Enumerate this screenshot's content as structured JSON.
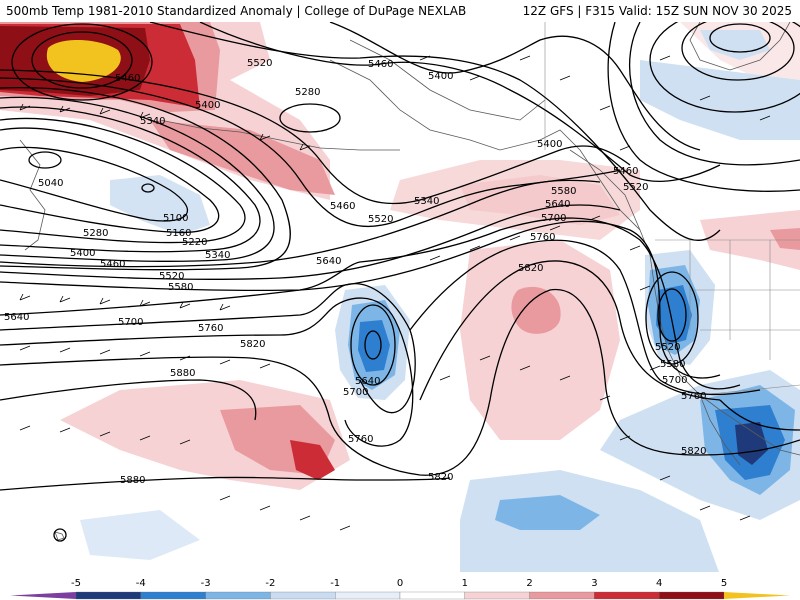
{
  "header": {
    "title_left": "500mb Temp 1981-2010 Standardized Anomaly | College of DuPage NEXLAB",
    "title_right": "12Z GFS | F315 Valid: 15Z SUN NOV 30 2025"
  },
  "colorbar": {
    "ticks": [
      "-5",
      "-4",
      "-3",
      "-2",
      "-1",
      "0",
      "1",
      "2",
      "3",
      "4",
      "5"
    ],
    "colors": [
      "#7b3fa0",
      "#1f3a7a",
      "#2f7fd0",
      "#7db6e6",
      "#c9dcf2",
      "#e8eef8",
      "#ffffff",
      "#f6d2d4",
      "#e89a9e",
      "#cc2c36",
      "#8e0f16",
      "#f2c21e"
    ]
  },
  "contour_labels": {
    "c5520_nw": "5520",
    "c5460_n": "5460",
    "c5400_n": "5400",
    "c5460_nw": "5460",
    "c5280_n": "5280",
    "c5400_nw": "5400",
    "c5340_nw": "5340",
    "c5040": "5040",
    "c5100": "5100",
    "c5160": "5160",
    "c5220": "5220",
    "c5280_w": "5280",
    "c5340_w": "5340",
    "c5400_w": "5400",
    "c5460_w": "5460",
    "c5520_w": "5520",
    "c5580_w": "5580",
    "c5640_w": "5640",
    "c5700_w": "5700",
    "c5760_w": "5760",
    "c5820_w": "5820",
    "c5880_w": "5880",
    "c5880_sw": "5880",
    "c5460_c": "5460",
    "c5520_c": "5520",
    "c5340_c": "5340",
    "c5640_c": "5640",
    "c5640_low": "5640",
    "c5700_low": "5700",
    "c5760_low": "5760",
    "c5820_s": "5820",
    "c5580_e": "5580",
    "c5640_e": "5640",
    "c5700_e": "5700",
    "c5760_e": "5760",
    "c5820_e": "5820",
    "c5400_ne": "5400",
    "c5460_ne": "5460",
    "c5520_ne": "5520",
    "c5520_cut": "5520",
    "c5580_cut": "5580",
    "c5700_cut": "5700",
    "c5760_cut": "5760",
    "c5820_se": "5820"
  },
  "legend_colors": {
    "pos_strong": "#8e0f16",
    "pos_high": "#cc2c36",
    "pos_mid": "#e89a9e",
    "pos_low": "#f6d2d4",
    "neg_low": "#cfe0f3",
    "neg_mid": "#7db6e6",
    "neg_high": "#2f7fd0",
    "neg_strong": "#1f3a7a",
    "max": "#f2c21e",
    "contour": "#000000",
    "coast": "#5a5a5a"
  }
}
